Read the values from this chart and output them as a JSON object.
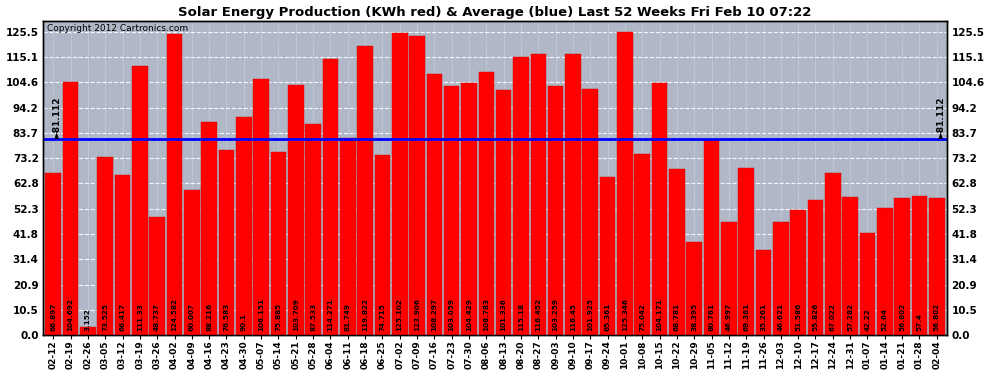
{
  "title": "Solar Energy Production (KWh red) & Average (blue) Last 52 Weeks Fri Feb 10 07:22",
  "copyright": "Copyright 2012 Cartronics.com",
  "average_line": 81.112,
  "bar_color": "#FF0000",
  "avg_line_color": "#0000FF",
  "background_color": "#FFFFFF",
  "plot_bg_color": "#B0B8C8",
  "ylim": [
    0,
    130
  ],
  "yticks": [
    0.0,
    10.5,
    20.9,
    31.4,
    41.8,
    52.3,
    62.8,
    73.2,
    83.7,
    94.2,
    104.6,
    115.1,
    125.5
  ],
  "categories": [
    "02-12",
    "02-19",
    "02-26",
    "03-05",
    "03-12",
    "03-19",
    "03-26",
    "04-02",
    "04-09",
    "04-16",
    "04-23",
    "04-30",
    "05-07",
    "05-14",
    "05-21",
    "05-28",
    "06-04",
    "06-11",
    "06-18",
    "06-25",
    "07-02",
    "07-09",
    "07-16",
    "07-23",
    "07-30",
    "08-06",
    "08-13",
    "08-20",
    "08-27",
    "09-03",
    "09-10",
    "09-17",
    "09-24",
    "10-01",
    "10-08",
    "10-15",
    "10-22",
    "10-29",
    "11-05",
    "11-12",
    "11-19",
    "11-26",
    "12-03",
    "12-10",
    "12-17",
    "12-24",
    "12-31",
    "01-07",
    "01-14",
    "01-21",
    "01-28",
    "02-04"
  ],
  "values": [
    66.897,
    104.692,
    3.152,
    73.525,
    66.417,
    111.33,
    48.737,
    124.582,
    60.007,
    88.216,
    76.583,
    90.1,
    106.151,
    75.885,
    103.709,
    87.533,
    114.271,
    81.749,
    119.822,
    74.715,
    125.102,
    123.906,
    108.297,
    103.059,
    104.429,
    108.783,
    101.336,
    115.18,
    116.452,
    103.259,
    116.45,
    101.925,
    65.361,
    125.346,
    75.042,
    104.171,
    68.781,
    38.395,
    80.761,
    46.997,
    69.361,
    35.261,
    46.621,
    51.586,
    55.826,
    67.022,
    57.282,
    42.22,
    52.64,
    56.802,
    57.4,
    56.802
  ]
}
